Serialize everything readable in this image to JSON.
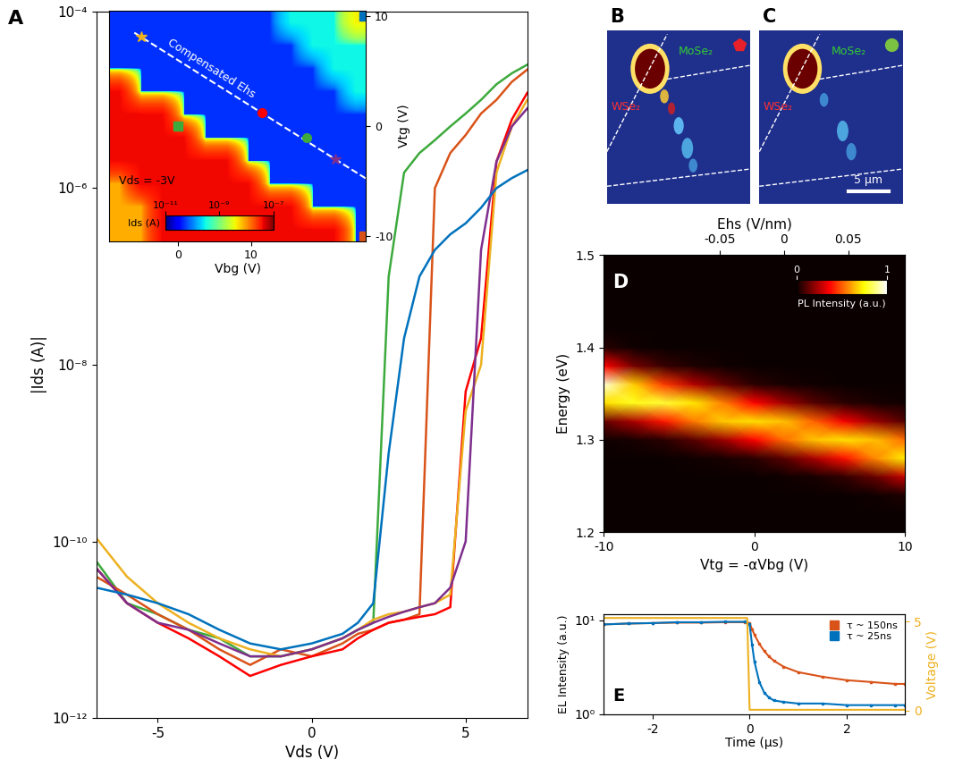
{
  "chart_data": [
    {
      "type": "line",
      "label": "A",
      "xlabel": "Vds (V)",
      "ylabel": "|Ids (A)|",
      "log": "y",
      "xlim": [
        -7,
        7
      ],
      "ylim": [
        1e-12,
        0.0001
      ],
      "xticks": [
        -5,
        0,
        5
      ],
      "yticks": [
        {
          "value": 1e-12,
          "label": "10⁻¹²"
        },
        {
          "value": 1e-10,
          "label": "10⁻¹⁰"
        },
        {
          "value": 1e-08,
          "label": "10⁻⁸"
        },
        {
          "value": 1e-06,
          "label": "10⁻⁶"
        },
        {
          "value": 0.0001,
          "label": "10⁻⁴"
        }
      ],
      "x": [
        -7,
        -6,
        -5,
        -4,
        -3,
        -2,
        -1,
        0,
        1,
        1.5,
        2,
        2.5,
        3,
        3.5,
        4,
        4.5,
        5,
        5.5,
        6,
        6.5,
        7
      ],
      "series": [
        {
          "color": "#3daa3d",
          "values": [
            6e-11,
            2e-11,
            1.5e-11,
            1e-11,
            8e-12,
            5e-12,
            5e-12,
            6e-12,
            8e-12,
            1e-11,
            1.2e-11,
            1e-07,
            1.5e-06,
            2.5e-06,
            3.5e-06,
            5e-06,
            7e-06,
            1e-05,
            1.5e-05,
            2e-05,
            2.5e-05
          ]
        },
        {
          "color": "#d95319",
          "values": [
            4e-11,
            2.5e-11,
            1.5e-11,
            1e-11,
            6e-12,
            4e-12,
            6e-12,
            5e-12,
            7e-12,
            9e-12,
            1e-11,
            1.2e-11,
            1.3e-11,
            1.5e-11,
            1e-06,
            2.5e-06,
            4e-06,
            7e-06,
            1e-05,
            1.6e-05,
            2.2e-05
          ]
        },
        {
          "color": "#ff0000",
          "values": [
            5e-11,
            2e-11,
            1.2e-11,
            8e-12,
            5e-12,
            3e-12,
            4e-12,
            5e-12,
            6e-12,
            8e-12,
            1e-11,
            1.2e-11,
            1.3e-11,
            1.4e-11,
            1.5e-11,
            1.8e-11,
            5e-09,
            2e-08,
            2e-06,
            6e-06,
            1.2e-05
          ]
        },
        {
          "color": "#edb120",
          "values": [
            1.1e-10,
            4e-11,
            2e-11,
            1.2e-11,
            8e-12,
            6e-12,
            5e-12,
            6e-12,
            8e-12,
            1e-11,
            1.3e-11,
            1.5e-11,
            1.6e-11,
            1.8e-11,
            2e-11,
            2.5e-11,
            3e-09,
            1e-08,
            1.5e-06,
            5e-06,
            1e-05
          ]
        },
        {
          "color": "#7e2f8e",
          "values": [
            5e-11,
            2e-11,
            1.2e-11,
            1e-11,
            7e-12,
            5e-12,
            5e-12,
            6e-12,
            8e-12,
            1e-11,
            1.2e-11,
            1.4e-11,
            1.6e-11,
            1.8e-11,
            2e-11,
            3e-11,
            1e-10,
            2e-07,
            2e-06,
            5e-06,
            8e-06
          ]
        },
        {
          "color": "#0072bd",
          "values": [
            3e-11,
            2.5e-11,
            2e-11,
            1.5e-11,
            1e-11,
            7e-12,
            6e-12,
            7e-12,
            9e-12,
            1.2e-11,
            2e-11,
            1e-09,
            2e-08,
            1e-07,
            2e-07,
            3e-07,
            4e-07,
            6e-07,
            1e-06,
            1.3e-06,
            1.6e-06
          ]
        }
      ]
    },
    {
      "type": "heatmap",
      "xlabel": "Vbg (V)",
      "ylabel": "Vtg (V)",
      "xlim": [
        -9.5,
        25.7
      ],
      "ylim": [
        -10.5,
        10.5
      ],
      "xticks": [
        0,
        10
      ],
      "yticks": [
        -10,
        0,
        10
      ],
      "cells": [
        [
          5e-11,
          5e-11,
          5e-11,
          5e-11,
          5e-11,
          5e-11,
          5e-11,
          5e-11,
          3e-10,
          3e-10,
          3e-10,
          4e-09
        ],
        [
          5e-11,
          5e-11,
          5e-11,
          5e-11,
          5e-11,
          5e-11,
          5e-11,
          5e-11,
          5e-11,
          3e-10,
          3e-10,
          3e-10
        ],
        [
          5e-11,
          5e-11,
          5e-11,
          5e-11,
          5e-11,
          5e-11,
          5e-11,
          5e-11,
          5e-11,
          5e-11,
          3e-10,
          3e-10
        ],
        [
          4e-08,
          5e-11,
          5e-11,
          5e-11,
          5e-11,
          5e-11,
          5e-11,
          5e-11,
          5e-11,
          5e-11,
          5e-11,
          3e-10
        ],
        [
          4e-08,
          4e-08,
          4e-08,
          5e-11,
          5e-11,
          5e-11,
          5e-11,
          5e-11,
          5e-11,
          5e-11,
          5e-11,
          5e-11
        ],
        [
          4e-08,
          4e-08,
          4e-08,
          4e-08,
          5e-11,
          5e-11,
          5e-11,
          5e-11,
          5e-11,
          5e-11,
          5e-11,
          5e-11
        ],
        [
          4e-08,
          4e-08,
          4e-08,
          4e-08,
          4e-08,
          4e-08,
          5e-11,
          5e-11,
          5e-11,
          5e-11,
          5e-11,
          5e-11
        ],
        [
          8e-09,
          4e-08,
          4e-08,
          4e-08,
          4e-08,
          4e-08,
          4e-08,
          5e-11,
          5e-11,
          5e-11,
          5e-11,
          5e-11
        ],
        [
          8e-09,
          8e-09,
          4e-08,
          4e-08,
          4e-08,
          4e-08,
          4e-08,
          4e-08,
          4e-08,
          5e-11,
          5e-11,
          5e-11
        ],
        [
          8e-09,
          8e-09,
          4e-08,
          4e-08,
          4e-08,
          4e-08,
          4e-08,
          4e-08,
          4e-08,
          4e-08,
          4e-08,
          5e-11
        ]
      ],
      "colorbar": {
        "label": "Ids (A)",
        "range": [
          1e-11,
          1e-07
        ],
        "log": true,
        "ticks": [
          {
            "value": 1e-11,
            "label": "10⁻¹¹"
          },
          {
            "value": 1e-09,
            "label": "10⁻⁹"
          },
          {
            "value": 1e-07,
            "label": "10⁻⁷"
          }
        ]
      },
      "annotations": [
        "Compensated Ehs",
        "Vds = -3V"
      ],
      "markers": [
        {
          "x": -5,
          "y": 8.1,
          "color": "#edb120",
          "marker": "star"
        },
        {
          "x": 25.4,
          "y": 10,
          "color": "#0072bd",
          "marker": "square"
        },
        {
          "x": 0,
          "y": 0,
          "color": "#3daa3d",
          "marker": "square"
        },
        {
          "x": 11.5,
          "y": 1.2,
          "color": "#ff0000",
          "marker": "circle"
        },
        {
          "x": 17.6,
          "y": -1.1,
          "color": "#3daa3d",
          "marker": "circle"
        },
        {
          "x": 21.5,
          "y": -3,
          "color": "#7e2f8e",
          "marker": "star"
        },
        {
          "x": 25.4,
          "y": -10,
          "color": "#d95319",
          "marker": "square"
        }
      ],
      "line": {
        "x": [
          -6,
          25.7
        ],
        "y": [
          8.5,
          -4.8
        ],
        "color": "#ffffff",
        "line_style": "dashed"
      }
    },
    {
      "type": "image",
      "label": "B",
      "texts": [
        "WSe₂",
        "MoSe₂"
      ],
      "marker": {
        "color": "#e8202a",
        "marker": "pentagon"
      }
    },
    {
      "type": "image",
      "label": "C",
      "texts": [
        "WSe₂",
        "MoSe₂"
      ],
      "marker": {
        "color": "#7cc242",
        "marker": "circle"
      },
      "scale_bar": "5 μm"
    },
    {
      "type": "heatmap",
      "label": "D",
      "xlabel": "Vtg = -αVbg (V)",
      "ylabel": "Energy (eV)",
      "x2label": "Ehs (V/nm)",
      "xlim": [
        -10,
        10
      ],
      "xticks": [
        -10,
        0,
        10
      ],
      "ylim": [
        1.2,
        1.5
      ],
      "yticks": [
        1.2,
        1.3,
        1.4,
        1.5
      ],
      "x2lim": [
        -0.14,
        0.094
      ],
      "x2ticks": [
        -0.05,
        0,
        0.05
      ],
      "x": [
        -10,
        -8,
        -6,
        -4,
        -2,
        0,
        2,
        4,
        6,
        8,
        10
      ],
      "y": [
        1.2,
        1.22,
        1.24,
        1.26,
        1.28,
        1.3,
        1.32,
        1.34,
        1.36,
        1.38,
        1.4,
        1.42,
        1.44,
        1.46,
        1.48,
        1.5
      ],
      "cells": [
        [
          0,
          0,
          0,
          0,
          0,
          0,
          0,
          0,
          0,
          0,
          0
        ],
        [
          0,
          0,
          0,
          0,
          0,
          0,
          0,
          0,
          0,
          0,
          0
        ],
        [
          0,
          0,
          0,
          0,
          0,
          0,
          0,
          0,
          0,
          0.01,
          0.03
        ],
        [
          0,
          0,
          0,
          0,
          0,
          0,
          0.01,
          0.02,
          0.06,
          0.14,
          0.28
        ],
        [
          0,
          0,
          0,
          0.01,
          0.02,
          0.05,
          0.12,
          0.24,
          0.39,
          0.57,
          0.72
        ],
        [
          0.01,
          0.02,
          0.05,
          0.12,
          0.22,
          0.37,
          0.53,
          0.66,
          0.7,
          0.65,
          0.53
        ],
        [
          0.14,
          0.24,
          0.4,
          0.55,
          0.67,
          0.7,
          0.65,
          0.51,
          0.35,
          0.21,
          0.11
        ],
        [
          0.7,
          0.77,
          0.8,
          0.71,
          0.55,
          0.37,
          0.22,
          0.11,
          0.05,
          0.02,
          0.01
        ],
        [
          0.96,
          0.67,
          0.45,
          0.25,
          0.13,
          0.05,
          0.02,
          0.01,
          0,
          0,
          0
        ],
        [
          0.37,
          0.16,
          0.07,
          0.03,
          0.01,
          0,
          0,
          0,
          0,
          0,
          0
        ],
        [
          0.04,
          0.01,
          0,
          0,
          0,
          0,
          0,
          0,
          0,
          0,
          0
        ],
        [
          0,
          0,
          0,
          0,
          0,
          0,
          0,
          0,
          0,
          0,
          0
        ],
        [
          0,
          0,
          0,
          0,
          0,
          0,
          0,
          0,
          0,
          0,
          0
        ],
        [
          0,
          0,
          0,
          0,
          0,
          0,
          0,
          0,
          0,
          0,
          0
        ],
        [
          0,
          0,
          0,
          0,
          0,
          0,
          0,
          0,
          0,
          0,
          0
        ],
        [
          0,
          0,
          0,
          0,
          0,
          0,
          0,
          0,
          0,
          0,
          0
        ]
      ],
      "colorbar": {
        "label": "PL Intensity (a.u.)",
        "range": [
          0,
          1
        ],
        "ticks": [
          0,
          1
        ]
      }
    },
    {
      "type": "line",
      "label": "E",
      "log": "y",
      "xlabel": "Time (μs)",
      "ylabel": "EL Intensity (a.u.)",
      "y2label": "Voltage (V)",
      "xlim": [
        -3,
        3.2
      ],
      "xticks": [
        -2,
        0,
        2
      ],
      "ylim": [
        1,
        11.5
      ],
      "yticks": [
        {
          "value": 1,
          "label": "10⁰"
        },
        {
          "value": 10,
          "label": "10¹"
        }
      ],
      "y2lim": [
        -0.2,
        5.4
      ],
      "y2ticks": [
        0,
        5
      ],
      "legend": "upper right",
      "x": [
        -3,
        -2.5,
        -2,
        -1.5,
        -1,
        -0.5,
        -0.1,
        0,
        0.05,
        0.1,
        0.2,
        0.3,
        0.4,
        0.5,
        0.7,
        1,
        1.5,
        2,
        2.5,
        3,
        3.2
      ],
      "series": [
        {
          "name": "τ ~ 150ns",
          "color": "#d95319",
          "marker": "square",
          "values": [
            9.0,
            9.2,
            9.3,
            9.4,
            9.4,
            9.5,
            9.5,
            9.3,
            8.0,
            7.0,
            5.6,
            4.7,
            4.1,
            3.7,
            3.2,
            2.8,
            2.5,
            2.3,
            2.2,
            2.1,
            2.1
          ]
        },
        {
          "name": "τ ~ 25ns",
          "color": "#0072bd",
          "marker": "square",
          "values": [
            9.0,
            9.2,
            9.3,
            9.5,
            9.5,
            9.6,
            9.6,
            9.0,
            5.5,
            3.6,
            2.2,
            1.7,
            1.5,
            1.4,
            1.35,
            1.3,
            1.3,
            1.25,
            1.25,
            1.25,
            1.25
          ]
        },
        {
          "color": "#edb120",
          "axis": "y2",
          "x": [
            -3,
            -0.05,
            0,
            3.2
          ],
          "values": [
            5.2,
            5.2,
            0.05,
            0.05
          ]
        }
      ]
    }
  ]
}
